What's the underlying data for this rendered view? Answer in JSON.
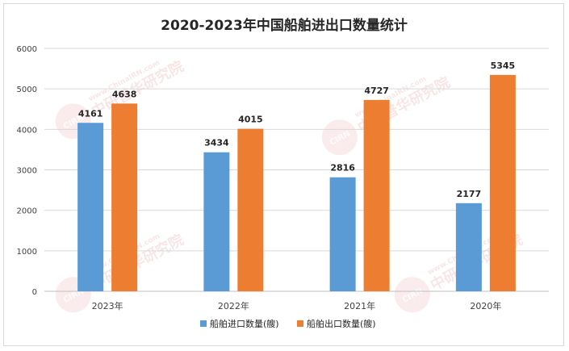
{
  "chart_data": {
    "type": "bar",
    "title": "2020-2023年中国船舶进出口数量统计",
    "categories": [
      "2023年",
      "2022年",
      "2021年",
      "2020年"
    ],
    "series": [
      {
        "name": "船舶进口数量(艘)",
        "values": [
          4161,
          3434,
          2816,
          2177
        ],
        "color": "#5b9bd5"
      },
      {
        "name": "船舶出口数量(艘)",
        "values": [
          4638,
          4015,
          4727,
          5345
        ],
        "color": "#ed7d31"
      }
    ],
    "ylim": [
      0,
      6000
    ],
    "yticks": [
      0,
      1000,
      2000,
      3000,
      4000,
      5000,
      6000
    ],
    "grid": true,
    "legend_position": "bottom",
    "xlabel": "",
    "ylabel": ""
  },
  "watermark": {
    "text": "中研普华研究院",
    "url_text": "www.ChinaIRN.com",
    "logo_text": "CIRN"
  }
}
